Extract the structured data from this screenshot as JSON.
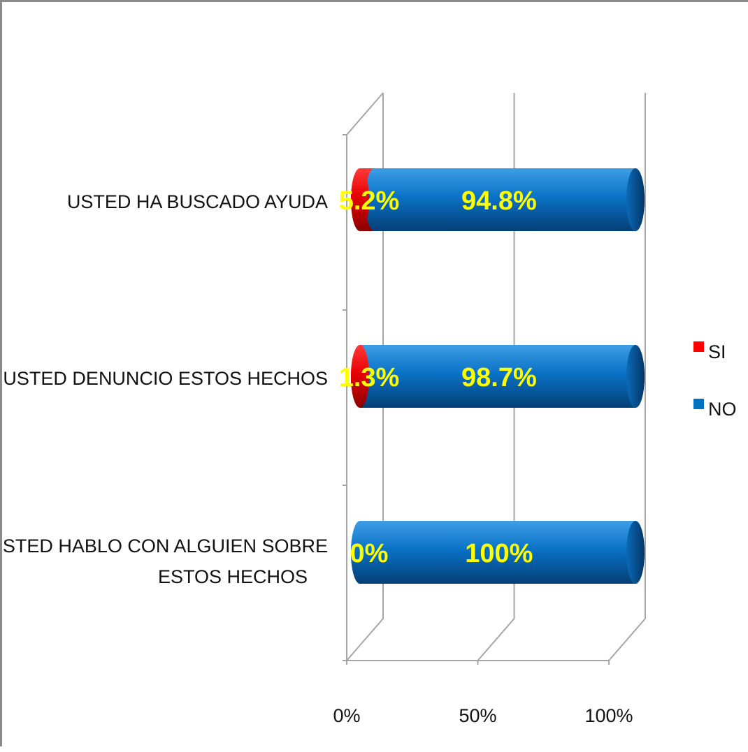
{
  "chart_data": {
    "type": "bar",
    "orientation": "horizontal",
    "stacked": "percent",
    "style": "3d-cylinder",
    "categories": [
      "USTED HA BUSCADO AYUDA",
      "USTED DENUNCIO ESTOS HECHOS",
      "USTED HABLO CON ALGUIEN SOBRE ESTOS HECHOS"
    ],
    "category_label_lines": [
      [
        "USTED HA BUSCADO AYUDA"
      ],
      [
        "USTED DENUNCIO ESTOS HECHOS"
      ],
      [
        "USTED HABLO CON ALGUIEN SOBRE",
        "ESTOS HECHOS"
      ]
    ],
    "series": [
      {
        "name": "SI",
        "color": "#ff0000",
        "values": [
          5.2,
          1.3,
          0
        ],
        "labels": [
          "5.2%",
          "1.3%",
          "0%"
        ]
      },
      {
        "name": "NO",
        "color": "#0070c0",
        "values": [
          94.8,
          98.7,
          100
        ],
        "labels": [
          "94.8%",
          "98.7%",
          "100%"
        ]
      }
    ],
    "data_label_color": "#ffff00",
    "xlim": [
      0,
      100
    ],
    "x_ticks": [
      "0%",
      "50%",
      "100%"
    ],
    "grid": true,
    "legend": "right",
    "title": "",
    "xlabel": "",
    "ylabel": ""
  }
}
